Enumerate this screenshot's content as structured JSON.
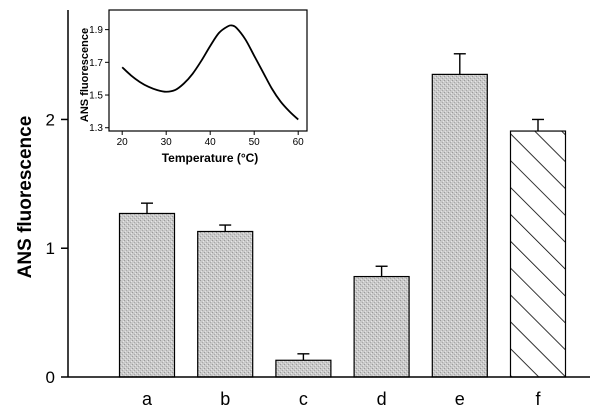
{
  "chart_data": [
    {
      "type": "bar",
      "title": "",
      "xlabel": "",
      "ylabel": "ANS fluorescence",
      "categories": [
        "a",
        "b",
        "c",
        "d",
        "e",
        "f"
      ],
      "values": [
        1.27,
        1.13,
        0.13,
        0.78,
        2.35,
        1.91
      ],
      "errors": [
        0.08,
        0.05,
        0.05,
        0.08,
        0.16,
        0.09
      ],
      "ylim": [
        0,
        2.85
      ],
      "yticks": [
        0,
        1,
        2
      ],
      "ytick_labels": [
        "0",
        "1",
        "2"
      ],
      "grid": false,
      "bar_styles": [
        "stippled",
        "stippled",
        "stippled",
        "stippled",
        "stippled",
        "hatched"
      ],
      "fill_color": "#c4c4c4",
      "edge_color": "#000000"
    },
    {
      "type": "line",
      "title": "",
      "xlabel": "Temperature (°C)",
      "ylabel": "ANS fluorescence",
      "x": [
        20,
        22,
        24,
        26,
        28,
        30,
        32,
        34,
        36,
        38,
        40,
        42,
        44,
        45,
        46,
        48,
        50,
        52,
        54,
        56,
        58,
        60
      ],
      "y": [
        1.67,
        1.62,
        1.58,
        1.55,
        1.53,
        1.52,
        1.53,
        1.57,
        1.63,
        1.71,
        1.8,
        1.88,
        1.92,
        1.925,
        1.91,
        1.84,
        1.74,
        1.64,
        1.54,
        1.46,
        1.4,
        1.35
      ],
      "xlim": [
        17,
        62
      ],
      "ylim": [
        1.28,
        2.02
      ],
      "xticks": [
        20,
        30,
        40,
        50,
        60
      ],
      "xtick_labels": [
        "20",
        "30",
        "40",
        "50",
        "60"
      ],
      "yticks": [
        1.3,
        1.5,
        1.7,
        1.9
      ],
      "ytick_labels": [
        "1.3",
        "1.5",
        "1.7",
        "1.9"
      ],
      "grid": false,
      "line_color": "#000000"
    }
  ]
}
